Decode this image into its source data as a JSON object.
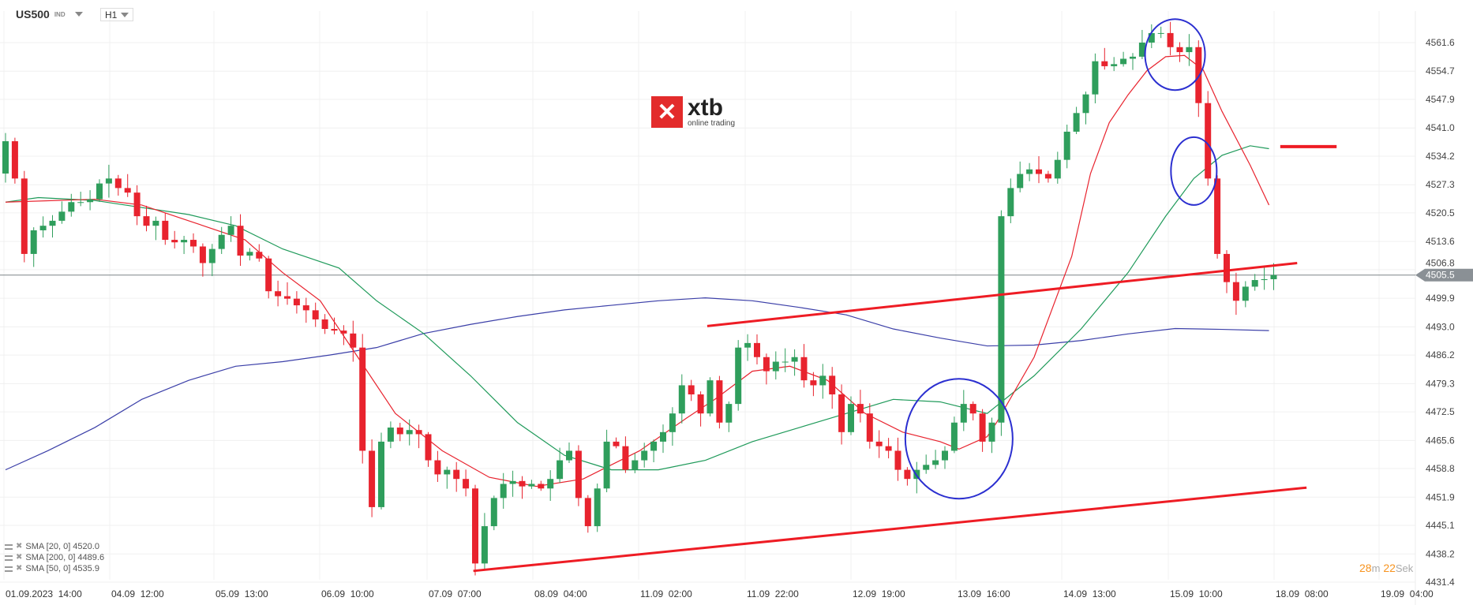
{
  "header": {
    "symbol": "US500",
    "type": "IND",
    "timeframe": "H1"
  },
  "logo": {
    "brand": "xtb",
    "tagline": "online trading"
  },
  "timer": {
    "minutes": "28",
    "minutes_unit": "m",
    "seconds": "22",
    "seconds_unit": "Sek"
  },
  "legend": [
    {
      "label": "SMA [20, 0] 4520.0"
    },
    {
      "label": "SMA [200, 0] 4489.6"
    },
    {
      "label": "SMA [50, 0] 4535.9"
    }
  ],
  "colors": {
    "up": "#2f9e5c",
    "down": "#e8232e",
    "sma20": "#e8232e",
    "sma50": "#1f9a5a",
    "sma200": "#3b3fa8",
    "trendline": "#ee1c24",
    "circle": "#2b2fd0",
    "price_tag": "#8a9095"
  },
  "chart_data": {
    "type": "candlestick",
    "symbol": "US500",
    "interval": "H1",
    "ylim": [
      4431.4,
      4561.6
    ],
    "y_ticks": [
      "4561.6",
      "4554.7",
      "4547.9",
      "4541.0",
      "4534.2",
      "4527.3",
      "4520.5",
      "4513.6",
      "4506.8",
      "4499.9",
      "4493.0",
      "4486.2",
      "4479.3",
      "4472.5",
      "4465.6",
      "4458.8",
      "4451.9",
      "4445.1",
      "4438.2",
      "4431.4"
    ],
    "x_ticks": [
      "01.09.2023  14:00",
      "04.09  12:00",
      "05.09  13:00",
      "06.09  10:00",
      "07.09  07:00",
      "08.09  04:00",
      "11.09  02:00",
      "11.09  22:00",
      "12.09  19:00",
      "13.09  16:00",
      "14.09  13:00",
      "15.09  10:00",
      "18.09  08:00",
      "19.09  04:00"
    ],
    "current_price": "4505.5",
    "closes": [
      4537.8,
      4528.8,
      4510.6,
      4516.3,
      4517.4,
      4518.6,
      4520.8,
      4523.1,
      4523.1,
      4523.8,
      4527.6,
      4528.8,
      4526.5,
      4525.4,
      4519.7,
      4517.4,
      4518.6,
      4514.0,
      4513.4,
      4514.0,
      4512.4,
      4508.4,
      4511.8,
      4515.2,
      4517.4,
      4510.2,
      4511.1,
      4509.5,
      4501.6,
      4500.4,
      4499.8,
      4498.2,
      4497.0,
      4494.8,
      4492.5,
      4492.1,
      4491.4,
      4488.0,
      4463.1,
      4449.5,
      4465.3,
      4468.7,
      4467.1,
      4468.1,
      4467.1,
      4460.8,
      4457.4,
      4458.5,
      4456.3,
      4454.0,
      4435.9,
      4444.9,
      4451.7,
      4455.1,
      4455.8,
      4454.5,
      4455.1,
      4454.0,
      4456.3,
      4460.8,
      4463.1,
      4451.7,
      4444.9,
      4454.0,
      4465.3,
      4464.2,
      4458.5,
      4460.8,
      4463.1,
      4465.3,
      4467.6,
      4472.1,
      4478.9,
      4476.7,
      4472.1,
      4480.1,
      4469.9,
      4474.4,
      4488.0,
      4489.1,
      4485.7,
      4482.3,
      4484.6,
      4484.6,
      4485.7,
      4480.1,
      4478.9,
      4481.2,
      4476.7,
      4467.6,
      4474.4,
      4472.1,
      4465.3,
      4464.2,
      4463.1,
      4458.5,
      4456.3,
      4458.5,
      4459.7,
      4460.8,
      4463.1,
      4469.9,
      4474.4,
      4472.1,
      4465.3,
      4469.9,
      4519.7,
      4526.5,
      4529.9,
      4531.0,
      4529.9,
      4528.8,
      4533.3,
      4540.1,
      4544.6,
      4549.1,
      4557.1,
      4555.9,
      4556.4,
      4557.7,
      4558.2,
      4561.6,
      4563.9,
      4563.9,
      4560.5,
      4559.3,
      4560.5,
      4547.0,
      4528.8,
      4510.6,
      4503.8,
      4499.3,
      4502.7,
      4504.3,
      4504.5,
      4505.5
    ],
    "series": [
      {
        "name": "SMA [20, 0]",
        "last": 4520.0,
        "color": "#e8232e",
        "points": [
          [
            0,
            4523.1
          ],
          [
            9.5,
            4523.8
          ],
          [
            14.5,
            4522.4
          ],
          [
            19.5,
            4518.6
          ],
          [
            25.5,
            4514
          ],
          [
            29.5,
            4506.1
          ],
          [
            33.5,
            4499.3
          ],
          [
            37.5,
            4485.7
          ],
          [
            41.5,
            4472.1
          ],
          [
            46.5,
            4463.1
          ],
          [
            51.5,
            4456.7
          ],
          [
            56.5,
            4454.5
          ],
          [
            61.5,
            4456.3
          ],
          [
            67.5,
            4463.1
          ],
          [
            72.5,
            4471
          ],
          [
            75.5,
            4475.5
          ],
          [
            79.5,
            4482.3
          ],
          [
            83.5,
            4483.5
          ],
          [
            87.5,
            4480.1
          ],
          [
            91.5,
            4472.1
          ],
          [
            95.5,
            4467.6
          ],
          [
            99.5,
            4465.3
          ],
          [
            101.5,
            4463.5
          ],
          [
            104.5,
            4466.5
          ],
          [
            105.5,
            4469.9
          ],
          [
            109.5,
            4485.7
          ],
          [
            113.5,
            4510
          ],
          [
            115.5,
            4530
          ],
          [
            117.5,
            4542.3
          ],
          [
            119.5,
            4549
          ],
          [
            121.5,
            4554.8
          ],
          [
            123.5,
            4558.2
          ],
          [
            125.5,
            4558.5
          ],
          [
            127.5,
            4555
          ],
          [
            129.5,
            4545
          ],
          [
            132.5,
            4532
          ],
          [
            134.5,
            4522.4
          ]
        ]
      },
      {
        "name": "SMA [50, 0]",
        "last": 4535.9,
        "color": "#1f9a5a",
        "points": [
          [
            0,
            4523.1
          ],
          [
            3.5,
            4524.2
          ],
          [
            9.5,
            4523.5
          ],
          [
            19.5,
            4520.1
          ],
          [
            24.5,
            4517.4
          ],
          [
            29.5,
            4511.8
          ],
          [
            35.5,
            4507.2
          ],
          [
            39.5,
            4499.3
          ],
          [
            44.5,
            4491.4
          ],
          [
            49.5,
            4481.2
          ],
          [
            54.5,
            4469.9
          ],
          [
            59.5,
            4462
          ],
          [
            64.5,
            4458.5
          ],
          [
            69.5,
            4458.5
          ],
          [
            74.5,
            4460.8
          ],
          [
            79.5,
            4465.3
          ],
          [
            84.5,
            4468.7
          ],
          [
            89.5,
            4472.1
          ],
          [
            94.5,
            4475.5
          ],
          [
            99.5,
            4474.9
          ],
          [
            104.5,
            4472.1
          ],
          [
            109.5,
            4481.2
          ],
          [
            114.5,
            4492.5
          ],
          [
            119.5,
            4506.1
          ],
          [
            123.5,
            4519.7
          ],
          [
            126.5,
            4528.8
          ],
          [
            129.5,
            4534.4
          ],
          [
            132.5,
            4536.7
          ],
          [
            134.5,
            4536
          ]
        ]
      },
      {
        "name": "SMA [200, 0]",
        "last": 4489.6,
        "color": "#3b3fa8",
        "points": [
          [
            0,
            4458.5
          ],
          [
            4.5,
            4463.1
          ],
          [
            9.5,
            4468.7
          ],
          [
            14.5,
            4475.5
          ],
          [
            19.5,
            4480.1
          ],
          [
            24.5,
            4483.5
          ],
          [
            29.5,
            4484.6
          ],
          [
            34.5,
            4486.2
          ],
          [
            39.5,
            4488
          ],
          [
            44.5,
            4491.4
          ],
          [
            49.5,
            4493.6
          ],
          [
            54.5,
            4495.5
          ],
          [
            59.5,
            4497.1
          ],
          [
            64.5,
            4498.2
          ],
          [
            69.5,
            4499.3
          ],
          [
            74.5,
            4500
          ],
          [
            79.5,
            4499.3
          ],
          [
            84.5,
            4497.7
          ],
          [
            89.5,
            4495.9
          ],
          [
            94.5,
            4492.5
          ],
          [
            99.5,
            4490.3
          ],
          [
            104.5,
            4488.4
          ],
          [
            109.5,
            4488.6
          ],
          [
            114.5,
            4489.7
          ],
          [
            119.5,
            4491.3
          ],
          [
            124.5,
            4492.6
          ],
          [
            129.5,
            4492.4
          ],
          [
            134.5,
            4492.1
          ]
        ]
      }
    ],
    "annotations": {
      "trendlines": [
        [
          [
            74.7,
            4493.2
          ],
          [
            137.5,
            4508.4
          ]
        ],
        [
          [
            49.8,
            4434.1
          ],
          [
            138.5,
            4454.2
          ]
        ]
      ],
      "horizontal_level": [
        [
          135.7,
          4536.5
        ],
        [
          141.7,
          4536.5
        ]
      ],
      "circles": [
        [
          124.5,
          4558.7
        ],
        [
          126.5,
          4530.6
        ],
        [
          101.5,
          4466
        ]
      ]
    }
  }
}
